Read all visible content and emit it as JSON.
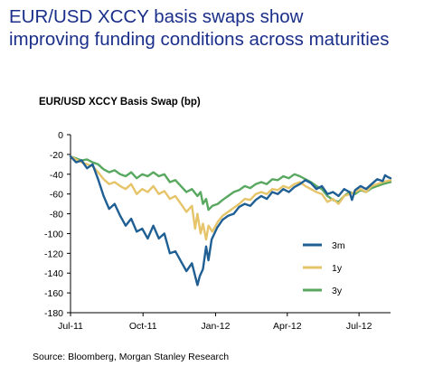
{
  "headline": {
    "line1": "EUR/USD XCCY basis swaps show",
    "line2": "improving funding conditions across maturities"
  },
  "source": "Source: Bloomberg, Morgan Stanley Research",
  "colors": {
    "3m": "#1f5f94",
    "1y": "#e6c46a",
    "3y": "#59a860",
    "headline": "#1b2f8a"
  },
  "chart_data": {
    "type": "line",
    "title": "EUR/USD XCCY Basis Swap (bp)",
    "xlabel": "",
    "ylabel": "",
    "ylim": [
      -180,
      0
    ],
    "yticks": [
      0,
      -20,
      -40,
      -60,
      -80,
      -100,
      -120,
      -140,
      -160,
      -180
    ],
    "xlim": [
      "2011-07-01",
      "2012-08-10"
    ],
    "xticks": [
      "Jul-11",
      "Oct-11",
      "Jan-12",
      "Apr-12",
      "Jul-12"
    ],
    "xtick_dates": [
      "2011-07-01",
      "2011-10-01",
      "2012-01-01",
      "2012-04-01",
      "2012-07-01"
    ],
    "grid": false,
    "legend_position": "right",
    "series": [
      {
        "name": "3m",
        "points": [
          [
            "2011-07-01",
            -22
          ],
          [
            "2011-07-08",
            -28
          ],
          [
            "2011-07-15",
            -26
          ],
          [
            "2011-07-22",
            -34
          ],
          [
            "2011-07-29",
            -30
          ],
          [
            "2011-08-05",
            -45
          ],
          [
            "2011-08-12",
            -62
          ],
          [
            "2011-08-19",
            -75
          ],
          [
            "2011-08-26",
            -70
          ],
          [
            "2011-09-02",
            -82
          ],
          [
            "2011-09-09",
            -92
          ],
          [
            "2011-09-16",
            -85
          ],
          [
            "2011-09-23",
            -98
          ],
          [
            "2011-09-30",
            -95
          ],
          [
            "2011-10-07",
            -105
          ],
          [
            "2011-10-14",
            -92
          ],
          [
            "2011-10-21",
            -105
          ],
          [
            "2011-10-28",
            -100
          ],
          [
            "2011-11-04",
            -120
          ],
          [
            "2011-11-11",
            -118
          ],
          [
            "2011-11-18",
            -128
          ],
          [
            "2011-11-25",
            -138
          ],
          [
            "2011-12-02",
            -130
          ],
          [
            "2011-12-09",
            -152
          ],
          [
            "2011-12-12",
            -143
          ],
          [
            "2011-12-16",
            -136
          ],
          [
            "2011-12-20",
            -113
          ],
          [
            "2011-12-23",
            -127
          ],
          [
            "2011-12-27",
            -106
          ],
          [
            "2012-01-03",
            -94
          ],
          [
            "2012-01-10",
            -86
          ],
          [
            "2012-01-17",
            -82
          ],
          [
            "2012-01-24",
            -80
          ],
          [
            "2012-01-31",
            -73
          ],
          [
            "2012-02-07",
            -70
          ],
          [
            "2012-02-14",
            -72
          ],
          [
            "2012-02-21",
            -66
          ],
          [
            "2012-02-28",
            -62
          ],
          [
            "2012-03-06",
            -65
          ],
          [
            "2012-03-13",
            -58
          ],
          [
            "2012-03-20",
            -60
          ],
          [
            "2012-03-27",
            -55
          ],
          [
            "2012-04-03",
            -58
          ],
          [
            "2012-04-10",
            -53
          ],
          [
            "2012-04-17",
            -50
          ],
          [
            "2012-04-24",
            -46
          ],
          [
            "2012-05-01",
            -49
          ],
          [
            "2012-05-08",
            -55
          ],
          [
            "2012-05-15",
            -52
          ],
          [
            "2012-05-22",
            -60
          ],
          [
            "2012-05-29",
            -58
          ],
          [
            "2012-06-05",
            -62
          ],
          [
            "2012-06-12",
            -55
          ],
          [
            "2012-06-19",
            -58
          ],
          [
            "2012-06-22",
            -66
          ],
          [
            "2012-06-26",
            -56
          ],
          [
            "2012-07-03",
            -52
          ],
          [
            "2012-07-10",
            -55
          ],
          [
            "2012-07-17",
            -50
          ],
          [
            "2012-07-24",
            -45
          ],
          [
            "2012-07-31",
            -47
          ],
          [
            "2012-08-03",
            -41
          ],
          [
            "2012-08-07",
            -43
          ],
          [
            "2012-08-10",
            -44
          ]
        ]
      },
      {
        "name": "1y",
        "points": [
          [
            "2011-07-01",
            -22
          ],
          [
            "2011-07-08",
            -25
          ],
          [
            "2011-07-15",
            -28
          ],
          [
            "2011-07-22",
            -30
          ],
          [
            "2011-07-29",
            -32
          ],
          [
            "2011-08-05",
            -38
          ],
          [
            "2011-08-12",
            -45
          ],
          [
            "2011-08-19",
            -50
          ],
          [
            "2011-08-26",
            -48
          ],
          [
            "2011-09-02",
            -52
          ],
          [
            "2011-09-09",
            -55
          ],
          [
            "2011-09-16",
            -50
          ],
          [
            "2011-09-23",
            -60
          ],
          [
            "2011-09-30",
            -55
          ],
          [
            "2011-10-07",
            -58
          ],
          [
            "2011-10-14",
            -52
          ],
          [
            "2011-10-21",
            -60
          ],
          [
            "2011-10-28",
            -57
          ],
          [
            "2011-11-04",
            -65
          ],
          [
            "2011-11-11",
            -62
          ],
          [
            "2011-11-18",
            -70
          ],
          [
            "2011-11-25",
            -78
          ],
          [
            "2011-12-02",
            -72
          ],
          [
            "2011-12-06",
            -95
          ],
          [
            "2011-12-09",
            -80
          ],
          [
            "2011-12-13",
            -100
          ],
          [
            "2011-12-16",
            -90
          ],
          [
            "2011-12-20",
            -106
          ],
          [
            "2011-12-23",
            -92
          ],
          [
            "2011-12-28",
            -98
          ],
          [
            "2012-01-04",
            -88
          ],
          [
            "2012-01-10",
            -82
          ],
          [
            "2012-01-17",
            -78
          ],
          [
            "2012-01-24",
            -74
          ],
          [
            "2012-01-31",
            -70
          ],
          [
            "2012-02-07",
            -65
          ],
          [
            "2012-02-14",
            -66
          ],
          [
            "2012-02-21",
            -60
          ],
          [
            "2012-02-28",
            -58
          ],
          [
            "2012-03-06",
            -60
          ],
          [
            "2012-03-13",
            -55
          ],
          [
            "2012-03-20",
            -56
          ],
          [
            "2012-03-27",
            -52
          ],
          [
            "2012-04-03",
            -54
          ],
          [
            "2012-04-10",
            -50
          ],
          [
            "2012-04-17",
            -48
          ],
          [
            "2012-04-24",
            -52
          ],
          [
            "2012-05-01",
            -55
          ],
          [
            "2012-05-08",
            -58
          ],
          [
            "2012-05-15",
            -60
          ],
          [
            "2012-05-22",
            -68
          ],
          [
            "2012-05-29",
            -65
          ],
          [
            "2012-06-05",
            -70
          ],
          [
            "2012-06-12",
            -62
          ],
          [
            "2012-06-19",
            -60
          ],
          [
            "2012-06-26",
            -58
          ],
          [
            "2012-07-03",
            -55
          ],
          [
            "2012-07-10",
            -58
          ],
          [
            "2012-07-17",
            -52
          ],
          [
            "2012-07-24",
            -50
          ],
          [
            "2012-07-31",
            -48
          ],
          [
            "2012-08-10",
            -46
          ]
        ]
      },
      {
        "name": "3y",
        "points": [
          [
            "2011-07-01",
            -22
          ],
          [
            "2011-07-08",
            -24
          ],
          [
            "2011-07-15",
            -26
          ],
          [
            "2011-07-22",
            -25
          ],
          [
            "2011-07-29",
            -28
          ],
          [
            "2011-08-05",
            -30
          ],
          [
            "2011-08-12",
            -35
          ],
          [
            "2011-08-19",
            -38
          ],
          [
            "2011-08-26",
            -36
          ],
          [
            "2011-09-02",
            -40
          ],
          [
            "2011-09-09",
            -42
          ],
          [
            "2011-09-16",
            -38
          ],
          [
            "2011-09-23",
            -44
          ],
          [
            "2011-09-30",
            -40
          ],
          [
            "2011-10-07",
            -42
          ],
          [
            "2011-10-14",
            -38
          ],
          [
            "2011-10-21",
            -42
          ],
          [
            "2011-10-28",
            -40
          ],
          [
            "2011-11-04",
            -48
          ],
          [
            "2011-11-11",
            -46
          ],
          [
            "2011-11-18",
            -52
          ],
          [
            "2011-11-25",
            -58
          ],
          [
            "2011-12-02",
            -55
          ],
          [
            "2011-12-09",
            -62
          ],
          [
            "2011-12-13",
            -58
          ],
          [
            "2011-12-16",
            -70
          ],
          [
            "2011-12-20",
            -65
          ],
          [
            "2011-12-23",
            -76
          ],
          [
            "2011-12-28",
            -72
          ],
          [
            "2012-01-04",
            -70
          ],
          [
            "2012-01-10",
            -66
          ],
          [
            "2012-01-17",
            -62
          ],
          [
            "2012-01-24",
            -58
          ],
          [
            "2012-01-31",
            -56
          ],
          [
            "2012-02-07",
            -52
          ],
          [
            "2012-02-14",
            -54
          ],
          [
            "2012-02-21",
            -50
          ],
          [
            "2012-02-28",
            -48
          ],
          [
            "2012-03-06",
            -50
          ],
          [
            "2012-03-13",
            -45
          ],
          [
            "2012-03-20",
            -46
          ],
          [
            "2012-03-27",
            -42
          ],
          [
            "2012-04-03",
            -44
          ],
          [
            "2012-04-10",
            -40
          ],
          [
            "2012-04-17",
            -42
          ],
          [
            "2012-04-24",
            -45
          ],
          [
            "2012-05-01",
            -48
          ],
          [
            "2012-05-08",
            -52
          ],
          [
            "2012-05-15",
            -55
          ],
          [
            "2012-05-22",
            -62
          ],
          [
            "2012-05-29",
            -66
          ],
          [
            "2012-06-05",
            -68
          ],
          [
            "2012-06-12",
            -62
          ],
          [
            "2012-06-19",
            -58
          ],
          [
            "2012-06-26",
            -60
          ],
          [
            "2012-07-03",
            -56
          ],
          [
            "2012-07-10",
            -58
          ],
          [
            "2012-07-17",
            -54
          ],
          [
            "2012-07-24",
            -52
          ],
          [
            "2012-07-31",
            -50
          ],
          [
            "2012-08-10",
            -48
          ]
        ]
      }
    ]
  }
}
